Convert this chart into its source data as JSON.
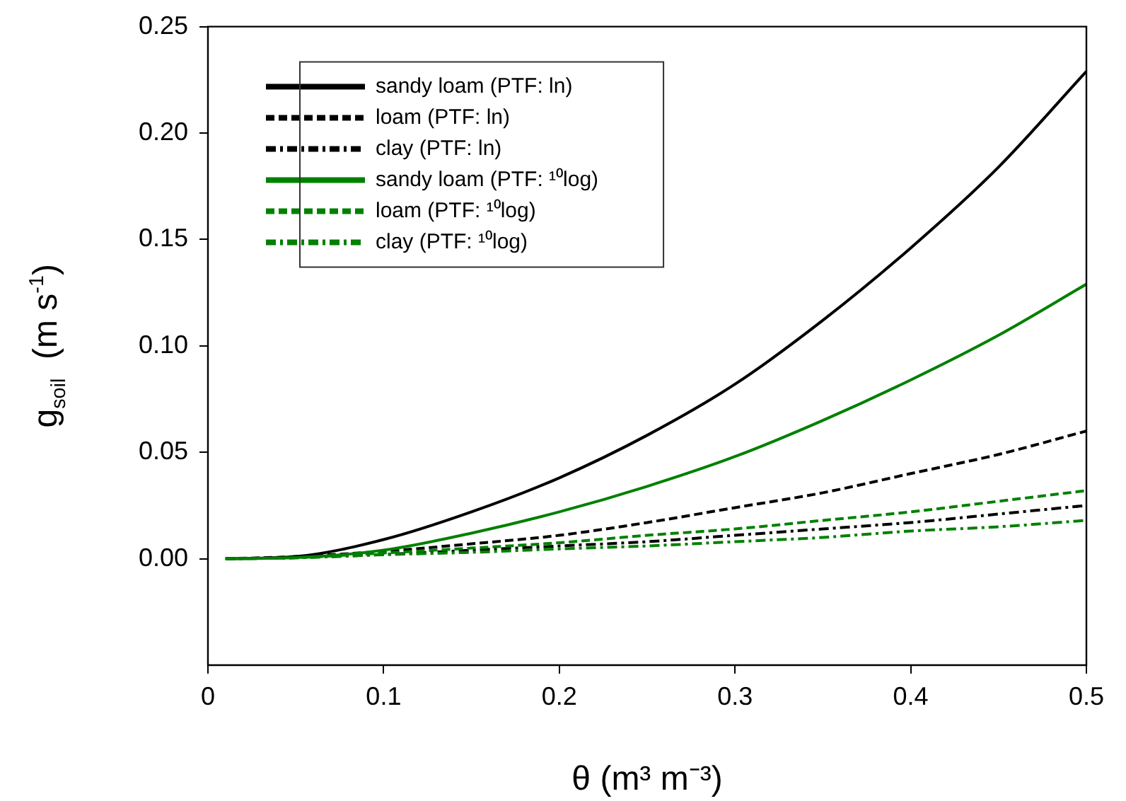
{
  "chart_data": {
    "type": "line",
    "xlabel": "θ (m³ m⁻³)",
    "ylabel": "g$_{soil}$  (m s$^{-1}$)",
    "x": [
      0.01,
      0.05,
      0.1,
      0.15,
      0.2,
      0.25,
      0.3,
      0.35,
      0.4,
      0.45,
      0.5
    ],
    "xlim": [
      0,
      0.5
    ],
    "xticks": [
      0,
      0.1,
      0.2,
      0.3,
      0.4,
      0.5
    ],
    "ylim": [
      -0.05,
      0.25
    ],
    "yticks": [
      {
        "value": 0,
        "label": "0.00"
      },
      {
        "value": 0.05,
        "label": "0.05"
      },
      {
        "value": 0.1,
        "label": "0.10"
      },
      {
        "value": 0.15,
        "label": "0.15"
      },
      {
        "value": 0.2,
        "label": "0.20"
      },
      {
        "value": 0.25,
        "label": "0.25"
      }
    ],
    "grid": false,
    "legend": "top left",
    "marker": "none",
    "series": [
      {
        "name": "sandy loam (PTF: ln)",
        "color": "#000000",
        "line_style": "solid",
        "values": [
          0,
          0.001,
          0.009,
          0.022,
          0.038,
          0.058,
          0.082,
          0.112,
          0.146,
          0.184,
          0.229
        ]
      },
      {
        "name": "loam (PTF: ln)",
        "color": "#000000",
        "line_style": "dashed",
        "values": [
          0,
          0.001,
          0.0035,
          0.007,
          0.011,
          0.017,
          0.024,
          0.031,
          0.04,
          0.049,
          0.06
        ]
      },
      {
        "name": "clay (PTF: ln)",
        "color": "#000000",
        "line_style": "dashdot",
        "values": [
          0,
          0.0005,
          0.002,
          0.004,
          0.006,
          0.008,
          0.011,
          0.014,
          0.017,
          0.021,
          0.025
        ]
      },
      {
        "name": "sandy loam (PTF: ¹⁰log)",
        "color": "#008000",
        "line_style": "solid",
        "values": [
          0,
          0.0005,
          0.004,
          0.012,
          0.022,
          0.034,
          0.048,
          0.065,
          0.084,
          0.105,
          0.129
        ]
      },
      {
        "name": "loam (PTF: ¹⁰log)",
        "color": "#008000",
        "line_style": "dashed",
        "values": [
          0,
          0.0005,
          0.0027,
          0.005,
          0.0075,
          0.011,
          0.014,
          0.018,
          0.022,
          0.027,
          0.032
        ]
      },
      {
        "name": "clay (PTF: ¹⁰log)",
        "color": "#008000",
        "line_style": "dashdot",
        "values": [
          0,
          0.0004,
          0.0019,
          0.003,
          0.0046,
          0.006,
          0.008,
          0.01,
          0.013,
          0.015,
          0.018
        ]
      }
    ]
  }
}
